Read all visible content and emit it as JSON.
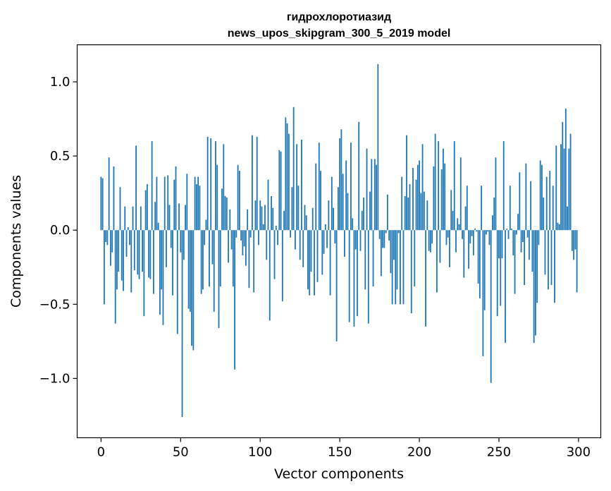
{
  "chart_data": {
    "type": "bar",
    "title": "гидрохлоротиазид",
    "subtitle": "news_upos_skipgram_300_5_2019 model",
    "xlabel": "Vector components",
    "ylabel": "Components values",
    "xlim": [
      -15,
      314
    ],
    "ylim": [
      -1.4,
      1.25
    ],
    "x_ticks": [
      {
        "value": 0,
        "label": "0"
      },
      {
        "value": 50,
        "label": "50"
      },
      {
        "value": 100,
        "label": "100"
      },
      {
        "value": 150,
        "label": "150"
      },
      {
        "value": 200,
        "label": "200"
      },
      {
        "value": 250,
        "label": "250"
      },
      {
        "value": 300,
        "label": "300"
      }
    ],
    "y_ticks": [
      {
        "value": -1.0,
        "label": "−1.0"
      },
      {
        "value": -0.5,
        "label": "−0.5"
      },
      {
        "value": 0.0,
        "label": "0.0"
      },
      {
        "value": 0.5,
        "label": "0.5"
      },
      {
        "value": 1.0,
        "label": "1.0"
      }
    ],
    "bar_color": "#1f77b4",
    "grid": false,
    "legend": "none",
    "values": [
      0.36,
      0.35,
      -0.5,
      -0.08,
      -0.1,
      0.49,
      -0.24,
      -0.15,
      0.43,
      -0.63,
      -0.4,
      -0.28,
      0.29,
      -0.34,
      -0.41,
      0.16,
      -0.18,
      0.02,
      -0.1,
      -0.42,
      0.16,
      -0.27,
      0.57,
      -0.3,
      -0.33,
      0.16,
      -0.28,
      -0.58,
      0.27,
      0.31,
      -0.32,
      -0.33,
      0.6,
      -0.43,
      0.19,
      0.36,
      0.05,
      -0.57,
      -0.4,
      -0.64,
      0.36,
      -0.25,
      0.37,
      0.17,
      -0.12,
      -0.44,
      0.34,
      0.43,
      -0.7,
      0.18,
      -0.15,
      -1.26,
      -0.2,
      0.17,
      0.38,
      -0.53,
      -0.55,
      -0.78,
      -0.81,
      0.36,
      0.31,
      0.36,
      0.3,
      -0.43,
      -0.4,
      -0.1,
      0.07,
      0.63,
      -0.38,
      0.62,
      -0.23,
      -0.55,
      0.6,
      0.44,
      -0.66,
      -0.38,
      0.28,
      0.58,
      0.23,
      0.22,
      -0.22,
      0.14,
      -0.13,
      -0.38,
      -0.94,
      -0.05,
      0.44,
      0.4,
      -0.07,
      -0.17,
      -0.11,
      -0.24,
      0.14,
      -0.39,
      -0.05,
      0.64,
      -0.42,
      0.2,
      0.63,
      -0.1,
      0.2,
      0.16,
      0.04,
      0.17,
      -0.2,
      0.34,
      -0.61,
      0.23,
      0.15,
      -0.33,
      0.03,
      -0.1,
      0.54,
      0.53,
      -0.48,
      0.13,
      0.76,
      0.72,
      0.65,
      -0.05,
      0.29,
      0.83,
      -0.13,
      0.58,
      0.3,
      -0.2,
      0.61,
      -0.25,
      0.17,
      0.1,
      -0.4,
      -0.44,
      -0.28,
      0.15,
      -0.44,
      0.45,
      -0.35,
      0.59,
      0.4,
      -0.3,
      -0.16,
      0.04,
      -0.12,
      0.2,
      -0.44,
      0.36,
      0.15,
      -0.09,
      -0.75,
      0.29,
      0.62,
      0.68,
      0.38,
      -0.18,
      0.47,
      0.25,
      -0.62,
      0.59,
      0.08,
      -0.65,
      -0.13,
      -0.58,
      0.73,
      -0.14,
      0.13,
      0.22,
      -0.4,
      0.55,
      -0.63,
      0.26,
      0.48,
      -0.38,
      0.48,
      0.44,
      1.12,
      -0.06,
      -0.31,
      -0.12,
      -0.12,
      -0.02,
      0.24,
      -0.07,
      -0.29,
      -0.5,
      -0.2,
      -0.5,
      -0.4,
      -0.02,
      -0.5,
      0.36,
      -0.5,
      0.23,
      0.64,
      0.22,
      0.31,
      -0.56,
      0.42,
      -0.38,
      0.34,
      0.44,
      0.47,
      0.25,
      0.58,
      0.26,
      -0.65,
      0.2,
      -0.14,
      -0.15,
      -0.09,
      0.43,
      0.65,
      -0.42,
      0.6,
      -0.22,
      0.41,
      0.55,
      0.45,
      -0.1,
      -0.05,
      -0.25,
      0.27,
      0.13,
      0.6,
      -0.15,
      0.08,
      0.04,
      0.49,
      -0.06,
      -0.32,
      0.16,
      0.3,
      -0.26,
      -0.09,
      -0.04,
      -0.17,
      0.01,
      -0.01,
      -0.36,
      -0.46,
      0.3,
      -0.85,
      -0.54,
      -0.03,
      -0.01,
      -0.1,
      -1.03,
      0.1,
      0.22,
      0.49,
      -0.58,
      -0.19,
      -0.51,
      -0.19,
      0.6,
      -0.76,
      0.01,
      -0.06,
      0.3,
      0.01,
      -0.17,
      -0.43,
      -0.03,
      0.11,
      0.39,
      -0.15,
      -0.08,
      -0.37,
      0.45,
      -0.05,
      -0.2,
      0.33,
      -0.28,
      -0.76,
      -0.71,
      -0.49,
      -0.1,
      0.47,
      0.44,
      0.22,
      -0.3,
      0.36,
      -0.4,
      0.4,
      -0.37,
      0.3,
      -0.49,
      0.57,
      0.05,
      0.04,
      0.58,
      0.73,
      0.55,
      0.82,
      0.16,
      0.55,
      0.65,
      -0.14,
      -0.2,
      -0.13,
      -0.42
    ]
  }
}
